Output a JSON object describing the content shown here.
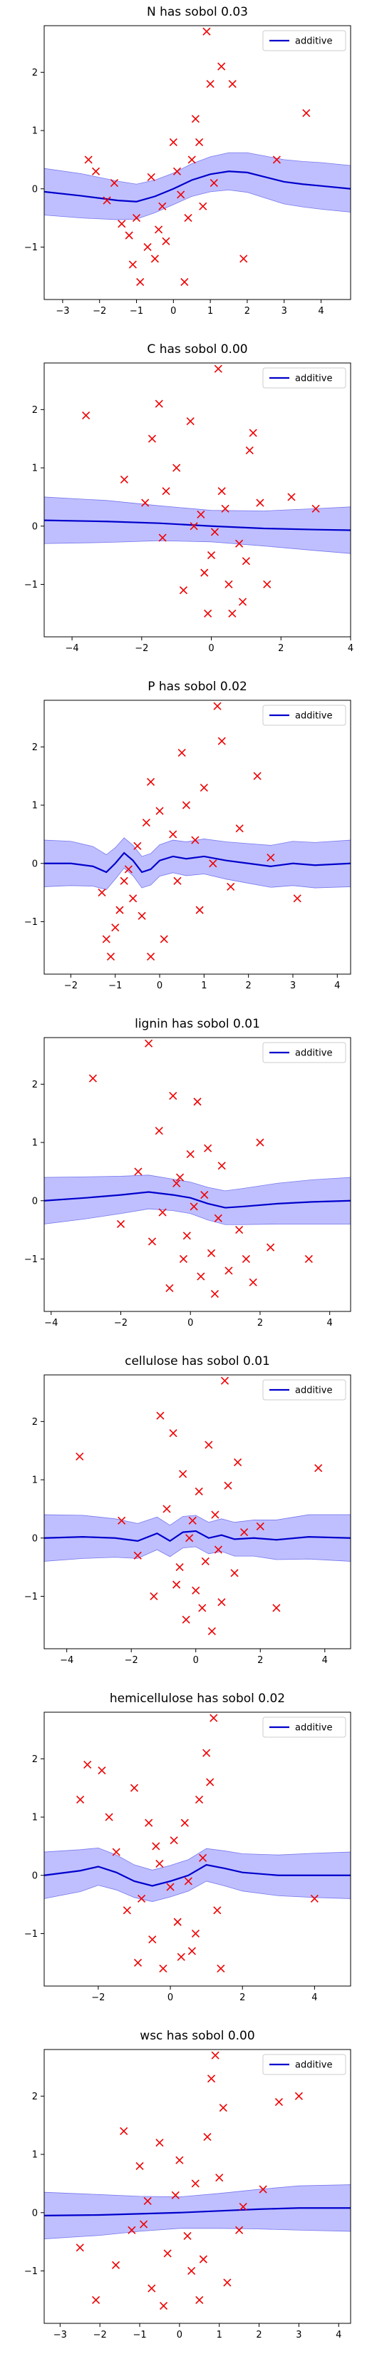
{
  "chart_data": [
    {
      "type": "scatter",
      "title": "N has sobol 0.03",
      "legend_label": "additive",
      "legend_position": "top-right",
      "xlim": [
        -3.5,
        4.8
      ],
      "ylim": [
        -1.9,
        2.8
      ],
      "xticks": [
        -3,
        -2,
        -1,
        0,
        1,
        2,
        3,
        4
      ],
      "yticks": [
        -1,
        0,
        1,
        2
      ],
      "curve": {
        "x": [
          -3.5,
          -2.5,
          -1.5,
          -1.0,
          -0.5,
          0.0,
          0.5,
          1.0,
          1.5,
          2.0,
          2.5,
          3.0,
          3.5,
          4.0,
          4.8
        ],
        "y": [
          -0.05,
          -0.12,
          -0.2,
          -0.22,
          -0.13,
          0.0,
          0.15,
          0.25,
          0.3,
          0.28,
          0.2,
          0.12,
          0.08,
          0.05,
          0.0
        ],
        "band_halfwidth": [
          0.4,
          0.38,
          0.33,
          0.3,
          0.28,
          0.27,
          0.28,
          0.3,
          0.32,
          0.34,
          0.36,
          0.38,
          0.39,
          0.4,
          0.4
        ]
      },
      "points": [
        [
          -1.0,
          -0.5
        ],
        [
          -0.7,
          -1.0
        ],
        [
          -1.2,
          -0.8
        ],
        [
          -0.5,
          -1.2
        ],
        [
          0.0,
          0.8
        ],
        [
          0.5,
          0.5
        ],
        [
          -0.3,
          -0.3
        ],
        [
          0.2,
          -0.1
        ],
        [
          1.0,
          1.8
        ],
        [
          1.3,
          2.1
        ],
        [
          -2.3,
          0.5
        ],
        [
          -2.1,
          0.3
        ],
        [
          -1.8,
          -0.2
        ],
        [
          0.9,
          2.7
        ],
        [
          1.6,
          1.8
        ],
        [
          3.6,
          1.3
        ],
        [
          2.8,
          0.5
        ],
        [
          -1.1,
          -1.3
        ],
        [
          -0.9,
          -1.6
        ],
        [
          -0.2,
          -0.9
        ],
        [
          0.4,
          -0.5
        ],
        [
          0.1,
          0.3
        ],
        [
          -0.6,
          0.2
        ],
        [
          -1.4,
          -0.6
        ],
        [
          0.6,
          1.2
        ],
        [
          0.7,
          0.8
        ],
        [
          1.1,
          0.1
        ],
        [
          1.9,
          -1.2
        ],
        [
          0.3,
          -1.6
        ],
        [
          -0.4,
          -0.7
        ],
        [
          -1.6,
          0.1
        ],
        [
          0.8,
          -0.3
        ]
      ]
    },
    {
      "type": "scatter",
      "title": "C has sobol 0.00",
      "legend_label": "additive",
      "legend_position": "top-right",
      "xlim": [
        -4.8,
        4.0
      ],
      "ylim": [
        -1.9,
        2.8
      ],
      "xticks": [
        -4,
        -2,
        0,
        2,
        4
      ],
      "yticks": [
        -1,
        0,
        1,
        2
      ],
      "curve": {
        "x": [
          -4.8,
          -3.0,
          -1.5,
          0.0,
          1.5,
          3.0,
          4.0
        ],
        "y": [
          0.1,
          0.08,
          0.05,
          0.0,
          -0.04,
          -0.06,
          -0.07
        ],
        "band_halfwidth": [
          0.4,
          0.36,
          0.3,
          0.27,
          0.3,
          0.36,
          0.4
        ]
      },
      "points": [
        [
          -3.6,
          1.9
        ],
        [
          0.2,
          2.7
        ],
        [
          -1.5,
          2.1
        ],
        [
          -0.6,
          1.8
        ],
        [
          1.2,
          1.6
        ],
        [
          1.1,
          1.3
        ],
        [
          -1.7,
          1.5
        ],
        [
          -1.0,
          1.0
        ],
        [
          -2.5,
          0.8
        ],
        [
          -1.3,
          0.6
        ],
        [
          0.4,
          0.3
        ],
        [
          -0.5,
          0.0
        ],
        [
          0.8,
          -0.3
        ],
        [
          0.0,
          -0.5
        ],
        [
          -0.2,
          -0.8
        ],
        [
          0.5,
          -1.0
        ],
        [
          0.9,
          -1.3
        ],
        [
          -0.1,
          -1.5
        ],
        [
          1.6,
          -1.0
        ],
        [
          -1.4,
          -0.2
        ],
        [
          0.3,
          0.6
        ],
        [
          2.3,
          0.5
        ],
        [
          3.0,
          0.3
        ],
        [
          -0.8,
          -1.1
        ],
        [
          0.6,
          -1.5
        ],
        [
          1.0,
          -0.6
        ],
        [
          -0.3,
          0.2
        ],
        [
          0.1,
          -0.1
        ],
        [
          1.4,
          0.4
        ],
        [
          -1.9,
          0.4
        ]
      ]
    },
    {
      "type": "scatter",
      "title": "P has sobol 0.02",
      "legend_label": "additive",
      "legend_position": "top-right",
      "xlim": [
        -2.6,
        4.3
      ],
      "ylim": [
        -1.9,
        2.8
      ],
      "xticks": [
        -2,
        -1,
        0,
        1,
        2,
        3,
        4
      ],
      "yticks": [
        -1,
        0,
        1,
        2
      ],
      "curve": {
        "x": [
          -2.6,
          -2.0,
          -1.5,
          -1.2,
          -1.0,
          -0.8,
          -0.6,
          -0.4,
          -0.2,
          0.0,
          0.3,
          0.6,
          1.0,
          1.5,
          2.0,
          2.5,
          3.0,
          3.5,
          4.3
        ],
        "y": [
          0.0,
          0.0,
          -0.05,
          -0.15,
          0.0,
          0.18,
          0.05,
          -0.15,
          -0.1,
          0.05,
          0.12,
          0.08,
          0.12,
          0.05,
          0.0,
          -0.05,
          0.0,
          -0.03,
          0.0
        ],
        "band_halfwidth": [
          0.4,
          0.38,
          0.34,
          0.3,
          0.27,
          0.26,
          0.26,
          0.27,
          0.27,
          0.27,
          0.28,
          0.29,
          0.3,
          0.32,
          0.34,
          0.36,
          0.38,
          0.39,
          0.4
        ]
      },
      "points": [
        [
          -1.0,
          -1.1
        ],
        [
          -1.2,
          -1.3
        ],
        [
          -0.9,
          -0.8
        ],
        [
          -1.1,
          -1.6
        ],
        [
          -0.8,
          -0.3
        ],
        [
          -0.6,
          -0.6
        ],
        [
          -0.4,
          -0.9
        ],
        [
          -0.2,
          -1.6
        ],
        [
          0.0,
          0.9
        ],
        [
          0.3,
          0.5
        ],
        [
          0.6,
          1.0
        ],
        [
          1.0,
          1.3
        ],
        [
          1.3,
          2.7
        ],
        [
          1.4,
          2.1
        ],
        [
          2.2,
          1.5
        ],
        [
          0.8,
          0.4
        ],
        [
          1.2,
          0.0
        ],
        [
          1.8,
          0.6
        ],
        [
          -0.5,
          0.3
        ],
        [
          -0.2,
          1.4
        ],
        [
          0.4,
          -0.3
        ],
        [
          0.9,
          -0.8
        ],
        [
          2.5,
          0.1
        ],
        [
          3.1,
          -0.6
        ],
        [
          0.1,
          -1.3
        ],
        [
          -0.7,
          -0.1
        ],
        [
          0.5,
          1.9
        ],
        [
          1.6,
          -0.4
        ],
        [
          -1.3,
          -0.5
        ],
        [
          -0.3,
          0.7
        ]
      ]
    },
    {
      "type": "scatter",
      "title": "lignin has sobol 0.01",
      "legend_label": "additive",
      "legend_position": "top-right",
      "xlim": [
        -4.2,
        4.6
      ],
      "ylim": [
        -1.9,
        2.8
      ],
      "xticks": [
        -4,
        -2,
        0,
        2,
        4
      ],
      "yticks": [
        -1,
        0,
        1,
        2
      ],
      "curve": {
        "x": [
          -4.2,
          -3.0,
          -2.0,
          -1.2,
          -0.5,
          0.0,
          0.5,
          1.0,
          1.5,
          2.5,
          3.5,
          4.6
        ],
        "y": [
          0.0,
          0.05,
          0.1,
          0.15,
          0.1,
          0.05,
          -0.05,
          -0.12,
          -0.1,
          -0.05,
          -0.02,
          0.0
        ],
        "band_halfwidth": [
          0.4,
          0.36,
          0.32,
          0.29,
          0.27,
          0.27,
          0.28,
          0.29,
          0.31,
          0.35,
          0.38,
          0.4
        ]
      },
      "points": [
        [
          -2.8,
          2.1
        ],
        [
          -1.2,
          2.7
        ],
        [
          -0.5,
          1.8
        ],
        [
          0.2,
          1.7
        ],
        [
          -0.9,
          1.2
        ],
        [
          0.0,
          0.8
        ],
        [
          -0.3,
          0.4
        ],
        [
          0.4,
          0.1
        ],
        [
          0.8,
          -0.3
        ],
        [
          -0.1,
          -0.6
        ],
        [
          0.6,
          -0.9
        ],
        [
          1.1,
          -1.2
        ],
        [
          -0.6,
          -1.5
        ],
        [
          0.3,
          -1.3
        ],
        [
          1.6,
          -1.0
        ],
        [
          2.0,
          1.0
        ],
        [
          1.4,
          -0.5
        ],
        [
          -1.5,
          0.5
        ],
        [
          -0.8,
          -0.2
        ],
        [
          0.1,
          -0.1
        ],
        [
          0.9,
          0.6
        ],
        [
          -0.2,
          -1.0
        ],
        [
          0.7,
          -1.6
        ],
        [
          2.3,
          -0.8
        ],
        [
          -1.1,
          -0.7
        ],
        [
          0.5,
          0.9
        ],
        [
          1.8,
          -1.4
        ],
        [
          -0.4,
          0.3
        ],
        [
          3.4,
          -1.0
        ],
        [
          -2.0,
          -0.4
        ]
      ]
    },
    {
      "type": "scatter",
      "title": "cellulose has sobol 0.01",
      "legend_label": "additive",
      "legend_position": "top-right",
      "xlim": [
        -4.7,
        4.8
      ],
      "ylim": [
        -1.9,
        2.8
      ],
      "xticks": [
        -4,
        -2,
        0,
        2,
        4
      ],
      "yticks": [
        -1,
        0,
        1,
        2
      ],
      "curve": {
        "x": [
          -4.7,
          -3.5,
          -2.5,
          -1.8,
          -1.2,
          -0.8,
          -0.4,
          0.0,
          0.4,
          0.8,
          1.2,
          1.8,
          2.5,
          3.5,
          4.8
        ],
        "y": [
          0.0,
          0.02,
          0.0,
          -0.05,
          0.08,
          -0.05,
          0.1,
          0.12,
          0.0,
          0.05,
          -0.02,
          0.0,
          -0.03,
          0.02,
          0.0
        ],
        "band_halfwidth": [
          0.4,
          0.37,
          0.33,
          0.3,
          0.28,
          0.27,
          0.27,
          0.27,
          0.27,
          0.28,
          0.29,
          0.31,
          0.34,
          0.38,
          0.4
        ]
      },
      "points": [
        [
          -3.6,
          1.4
        ],
        [
          0.9,
          2.7
        ],
        [
          -1.1,
          2.1
        ],
        [
          -0.7,
          1.8
        ],
        [
          0.4,
          1.6
        ],
        [
          -0.4,
          1.1
        ],
        [
          0.1,
          0.8
        ],
        [
          0.6,
          0.4
        ],
        [
          -0.2,
          0.0
        ],
        [
          0.3,
          -0.4
        ],
        [
          -0.6,
          -0.8
        ],
        [
          0.8,
          -1.1
        ],
        [
          -0.3,
          -1.4
        ],
        [
          1.2,
          -0.6
        ],
        [
          2.5,
          -1.2
        ],
        [
          3.8,
          1.2
        ],
        [
          -0.9,
          0.5
        ],
        [
          1.5,
          0.1
        ],
        [
          -1.8,
          -0.3
        ],
        [
          0.0,
          -0.9
        ],
        [
          0.5,
          -1.6
        ],
        [
          -1.3,
          -1.0
        ],
        [
          1.0,
          0.9
        ],
        [
          -0.1,
          0.3
        ],
        [
          0.7,
          -0.2
        ],
        [
          -0.5,
          -0.5
        ],
        [
          2.0,
          0.2
        ],
        [
          -2.3,
          0.3
        ],
        [
          0.2,
          -1.2
        ],
        [
          1.3,
          1.3
        ]
      ]
    },
    {
      "type": "scatter",
      "title": "hemicellulose has sobol 0.02",
      "legend_label": "additive",
      "legend_position": "top-right",
      "xlim": [
        -3.5,
        5.0
      ],
      "ylim": [
        -1.9,
        2.8
      ],
      "xticks": [
        -2,
        0,
        2,
        4
      ],
      "yticks": [
        -1,
        0,
        1,
        2
      ],
      "curve": {
        "x": [
          -3.5,
          -2.5,
          -2.0,
          -1.5,
          -1.0,
          -0.5,
          0.0,
          0.5,
          1.0,
          1.5,
          2.0,
          3.0,
          4.0,
          5.0
        ],
        "y": [
          0.0,
          0.08,
          0.15,
          0.05,
          -0.1,
          -0.18,
          -0.1,
          0.0,
          0.18,
          0.12,
          0.05,
          0.0,
          0.0,
          0.0
        ],
        "band_halfwidth": [
          0.4,
          0.36,
          0.32,
          0.3,
          0.28,
          0.27,
          0.27,
          0.27,
          0.28,
          0.3,
          0.32,
          0.35,
          0.38,
          0.4
        ]
      },
      "points": [
        [
          -2.3,
          1.9
        ],
        [
          -1.9,
          1.8
        ],
        [
          -2.5,
          1.3
        ],
        [
          1.2,
          2.7
        ],
        [
          1.0,
          2.1
        ],
        [
          -1.0,
          1.5
        ],
        [
          0.8,
          1.3
        ],
        [
          -0.6,
          0.9
        ],
        [
          0.1,
          0.6
        ],
        [
          -0.3,
          0.2
        ],
        [
          0.5,
          -0.1
        ],
        [
          -0.8,
          -0.4
        ],
        [
          0.2,
          -0.8
        ],
        [
          -0.5,
          -1.1
        ],
        [
          0.6,
          -1.3
        ],
        [
          -0.2,
          -1.6
        ],
        [
          1.3,
          -0.6
        ],
        [
          1.4,
          -1.6
        ],
        [
          4.0,
          -0.4
        ],
        [
          -1.5,
          0.4
        ],
        [
          0.4,
          0.9
        ],
        [
          -1.2,
          -0.6
        ],
        [
          0.9,
          0.3
        ],
        [
          0.0,
          -0.2
        ],
        [
          -0.9,
          -1.5
        ],
        [
          0.7,
          -1.0
        ],
        [
          1.1,
          1.6
        ],
        [
          -1.7,
          1.0
        ],
        [
          0.3,
          -1.4
        ],
        [
          -0.4,
          0.5
        ]
      ]
    },
    {
      "type": "scatter",
      "title": "wsc has sobol 0.00",
      "legend_label": "additive",
      "legend_position": "top-right",
      "xlim": [
        -3.4,
        4.3
      ],
      "ylim": [
        -1.9,
        2.8
      ],
      "xticks": [
        -3,
        -2,
        -1,
        0,
        1,
        2,
        3,
        4
      ],
      "yticks": [
        -1,
        0,
        1,
        2
      ],
      "curve": {
        "x": [
          -3.4,
          -2.0,
          -1.0,
          0.0,
          1.0,
          2.0,
          3.0,
          4.3
        ],
        "y": [
          -0.05,
          -0.04,
          -0.02,
          0.0,
          0.03,
          0.06,
          0.08,
          0.08
        ],
        "band_halfwidth": [
          0.4,
          0.35,
          0.3,
          0.27,
          0.3,
          0.34,
          0.38,
          0.4
        ]
      },
      "points": [
        [
          0.9,
          2.7
        ],
        [
          3.0,
          2.0
        ],
        [
          2.5,
          1.9
        ],
        [
          0.8,
          2.3
        ],
        [
          1.1,
          1.8
        ],
        [
          -0.5,
          1.2
        ],
        [
          0.0,
          0.9
        ],
        [
          0.4,
          0.5
        ],
        [
          -0.8,
          0.2
        ],
        [
          -1.2,
          -0.3
        ],
        [
          -0.3,
          -0.7
        ],
        [
          0.3,
          -1.0
        ],
        [
          -0.7,
          -1.3
        ],
        [
          0.5,
          -1.5
        ],
        [
          1.2,
          -1.2
        ],
        [
          -1.6,
          -0.9
        ],
        [
          -2.1,
          -1.5
        ],
        [
          1.5,
          -0.3
        ],
        [
          -2.5,
          -0.6
        ],
        [
          0.7,
          1.3
        ],
        [
          -0.1,
          0.3
        ],
        [
          1.0,
          0.6
        ],
        [
          -1.0,
          0.8
        ],
        [
          0.2,
          -0.4
        ],
        [
          -0.4,
          -1.6
        ],
        [
          1.6,
          0.1
        ],
        [
          -1.4,
          1.4
        ],
        [
          0.6,
          -0.8
        ],
        [
          2.1,
          0.4
        ],
        [
          -0.9,
          -0.2
        ]
      ]
    }
  ],
  "colors": {
    "curve": "#0000cc",
    "band": "#aaaaff",
    "points": "#ee0000"
  }
}
